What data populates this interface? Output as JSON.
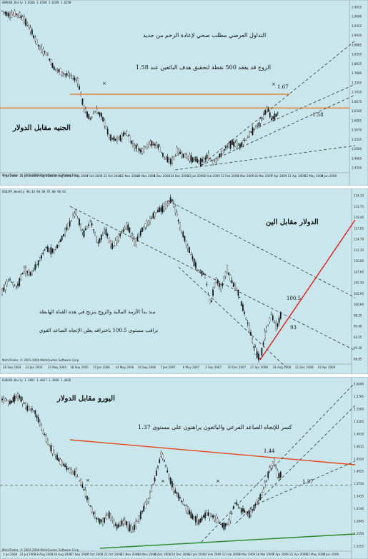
{
  "chart_data": [
    {
      "type": "candlestick",
      "header": "GBPUSD,Daily 1.6566 1.6588 1.6348 1.6350",
      "copyright": "MetaTrader, © 2001-2009 MetaQuotes Software Corp.",
      "title": "الجنيه مقابل الدولار",
      "annotations": [
        "التداول العرضي مطلب صحي لإعادة الزخم من جديد",
        "الزوج قد يفقد 500 نقطة لتحقيق هدف البائعين عند 1.58"
      ],
      "labels": [
        "1.67",
        "1.58"
      ],
      "x_ticks": [
        "1 Jul 2008",
        "21 Jul 2008",
        "8 Aug 2008",
        "28 Aug 2008",
        "17 Sep 2008",
        "7 Oct 2008",
        "22 Oct 2008",
        "11 Nov 2008",
        "24 Nov 2008",
        "4 Dec 2008",
        "24 Dec 2008",
        "13 Jan 2009",
        "2 Feb 2009",
        "12 Feb 2009",
        "3 Mar 2009",
        "18 Mar 2009",
        "7 Apr 2009",
        "21 Apr 2009",
        "12 May 2009",
        "4 Jun 2009"
      ],
      "y_ticks": [
        "2.0025",
        "1.9690",
        "1.9355",
        "1.9020",
        "1.8685",
        "1.8350",
        "1.8015",
        "1.7680",
        "1.7345",
        "1.7010",
        "1.6675",
        "1.6340",
        "1.6005",
        "1.5670",
        "1.5335",
        "1.5000",
        "1.4665",
        "1.4330"
      ],
      "ylim": [
        1.41,
        2.02
      ],
      "horizontal_line": 1.64,
      "price_path": [
        [
          0,
          2.0
        ],
        [
          8,
          1.985
        ],
        [
          15,
          1.99
        ],
        [
          22,
          1.97
        ],
        [
          30,
          1.92
        ],
        [
          38,
          1.86
        ],
        [
          45,
          1.84
        ],
        [
          52,
          1.79
        ],
        [
          60,
          1.77
        ],
        [
          68,
          1.76
        ],
        [
          76,
          1.74
        ],
        [
          82,
          1.64
        ],
        [
          88,
          1.6
        ],
        [
          94,
          1.63
        ],
        [
          100,
          1.61
        ],
        [
          108,
          1.53
        ],
        [
          116,
          1.52
        ],
        [
          124,
          1.55
        ],
        [
          132,
          1.5
        ],
        [
          140,
          1.48
        ],
        [
          148,
          1.51
        ],
        [
          156,
          1.5
        ],
        [
          164,
          1.45
        ],
        [
          170,
          1.44
        ],
        [
          176,
          1.48
        ],
        [
          184,
          1.46
        ],
        [
          192,
          1.45
        ],
        [
          200,
          1.44
        ],
        [
          206,
          1.46
        ],
        [
          212,
          1.44
        ],
        [
          218,
          1.46
        ],
        [
          224,
          1.49
        ],
        [
          230,
          1.51
        ],
        [
          238,
          1.5
        ],
        [
          246,
          1.53
        ],
        [
          252,
          1.56
        ],
        [
          258,
          1.58
        ],
        [
          262,
          1.61
        ],
        [
          266,
          1.64
        ],
        [
          270,
          1.6
        ],
        [
          274,
          1.61
        ],
        [
          278,
          1.63
        ]
      ],
      "marker": "×"
    },
    {
      "type": "candlestick",
      "header": "USDJPY,Weekly 98.43 98.98 97.00 98.91",
      "copyright": "MetaTrader, © 2001-2009 MetaQuotes Software Corp.",
      "title": "الدولار مقابل الين",
      "annotations": [
        "منذ بدأ الأزمة المالية والزوج يترنح في هذه القناة الهابطة",
        "نراقب مستوى 100.5 باختراقه يعلن الإتجاه الصاعد القوي"
      ],
      "labels": [
        "100.5",
        "93"
      ],
      "x_ticks": [
        "26 Sep 2004",
        "23 Jan 2005",
        "22 May 2005",
        "18 Sep 2005",
        "15 Jan 2006",
        "14 May 2006",
        "10 Sep 2006",
        "7 Jan 2007",
        "6 May 2007",
        "2 Sep 2007",
        "30 Dec 2007",
        "27 Apr 2008",
        "24 Aug 2008",
        "21 Dec 2008",
        "19 Apr 2009"
      ],
      "y_ticks": [
        "124.10",
        "121.75",
        "119.40",
        "117.05",
        "114.70",
        "112.35",
        "110.00",
        "107.65",
        "105.30",
        "102.95",
        "100.60",
        "98.25",
        "95.90",
        "93.55",
        "91.20",
        "88.85"
      ],
      "ylim": [
        87.5,
        125.0
      ],
      "price_path": [
        [
          0,
          103
        ],
        [
          8,
          106
        ],
        [
          16,
          104
        ],
        [
          24,
          108
        ],
        [
          32,
          107
        ],
        [
          40,
          110
        ],
        [
          48,
          113
        ],
        [
          56,
          112
        ],
        [
          64,
          115
        ],
        [
          72,
          118
        ],
        [
          80,
          121
        ],
        [
          88,
          116
        ],
        [
          96,
          119
        ],
        [
          104,
          114
        ],
        [
          112,
          117
        ],
        [
          120,
          113
        ],
        [
          128,
          116
        ],
        [
          136,
          118
        ],
        [
          144,
          114
        ],
        [
          152,
          117
        ],
        [
          160,
          119
        ],
        [
          168,
          121
        ],
        [
          176,
          122
        ],
        [
          184,
          124
        ],
        [
          190,
          120
        ],
        [
          196,
          116
        ],
        [
          204,
          112
        ],
        [
          212,
          108
        ],
        [
          220,
          107
        ],
        [
          226,
          100
        ],
        [
          232,
          106
        ],
        [
          238,
          104
        ],
        [
          244,
          108
        ],
        [
          250,
          105
        ],
        [
          256,
          103
        ],
        [
          262,
          99
        ],
        [
          268,
          95
        ],
        [
          274,
          90
        ],
        [
          280,
          88
        ],
        [
          286,
          94
        ],
        [
          292,
          98
        ],
        [
          298,
          95
        ],
        [
          304,
          99
        ]
      ],
      "marker": ""
    },
    {
      "type": "candlestick",
      "header": "EURUSD,Daily 1.3967 1.4027 1.3966 1.4026",
      "copyright": "MetaTrader, © 2001-2009 MetaQuotes Software Corp.",
      "title": "اليورو مقابل الدولار",
      "annotations": [
        "كسر للإتجاه الصاعد الفرعي والبائعون يراهنون على مستوى 1.37"
      ],
      "labels": [
        "1.44",
        "1.37"
      ],
      "x_ticks": [
        "1 Jul 2008",
        "21 Jul 2008",
        "8 Aug 2008",
        "28 Aug 2008",
        "17 Sep 2008",
        "7 Oct 2008",
        "22 Oct 2008",
        "11 Nov 2008",
        "24 Nov 2008",
        "4 Dec 2008",
        "24 Dec 2008",
        "13 Jan 2009",
        "2 Feb 2009",
        "12 Feb 2009",
        "3 Mar 2009",
        "18 Mar 2009",
        "7 Apr 2009",
        "21 Apr 2009",
        "12 May 2009",
        "4 Jun 2009"
      ],
      "y_ticks": [
        "1.6090",
        "1.5795",
        "1.5500",
        "1.5205",
        "1.4910",
        "1.4615",
        "1.4320",
        "1.4025",
        "1.3730",
        "1.3435",
        "1.3140",
        "1.2845",
        "1.2550",
        "1.2255"
      ],
      "ylim": [
        1.22,
        1.62
      ],
      "horizontal_line": 1.37,
      "price_path": [
        [
          0,
          1.58
        ],
        [
          8,
          1.57
        ],
        [
          16,
          1.59
        ],
        [
          24,
          1.56
        ],
        [
          32,
          1.55
        ],
        [
          40,
          1.5
        ],
        [
          48,
          1.46
        ],
        [
          56,
          1.43
        ],
        [
          64,
          1.41
        ],
        [
          72,
          1.4
        ],
        [
          80,
          1.36
        ],
        [
          86,
          1.32
        ],
        [
          92,
          1.29
        ],
        [
          98,
          1.28
        ],
        [
          104,
          1.3
        ],
        [
          112,
          1.27
        ],
        [
          120,
          1.28
        ],
        [
          128,
          1.26
        ],
        [
          136,
          1.3
        ],
        [
          144,
          1.34
        ],
        [
          150,
          1.39
        ],
        [
          156,
          1.45
        ],
        [
          162,
          1.4
        ],
        [
          168,
          1.36
        ],
        [
          176,
          1.33
        ],
        [
          184,
          1.3
        ],
        [
          192,
          1.28
        ],
        [
          200,
          1.3
        ],
        [
          208,
          1.29
        ],
        [
          216,
          1.27
        ],
        [
          222,
          1.28
        ],
        [
          228,
          1.33
        ],
        [
          234,
          1.31
        ],
        [
          242,
          1.3
        ],
        [
          250,
          1.33
        ],
        [
          256,
          1.36
        ],
        [
          262,
          1.41
        ],
        [
          266,
          1.43
        ],
        [
          270,
          1.39
        ],
        [
          274,
          1.4
        ]
      ],
      "marker": "×"
    }
  ]
}
